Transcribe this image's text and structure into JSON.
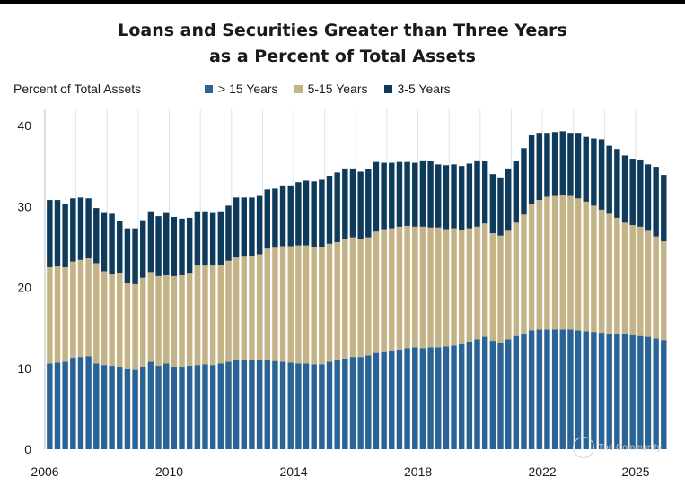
{
  "title_line1": "Loans and Securities Greater than Three Years",
  "title_line2": "as a Percent of Total Assets",
  "watermark": "The Community",
  "chart_data": {
    "type": "bar",
    "stacked": true,
    "title": "Loans and Securities Greater than Three Years as a Percent of Total Assets",
    "ylabel": "Percent of Total Assets",
    "xlabel": "",
    "ylim": [
      0,
      42
    ],
    "yticks": [
      0,
      10,
      20,
      30,
      40
    ],
    "xticks": [
      "2006",
      "2010",
      "2014",
      "2018",
      "2022",
      "2025"
    ],
    "x_start": 2006.0,
    "x_step": 0.25,
    "grid": "vertical",
    "legend_position": "top",
    "series": [
      {
        "name": "> 15 Years",
        "color": "#2a6496",
        "values": [
          10.6,
          10.7,
          10.8,
          11.3,
          11.4,
          11.5,
          10.6,
          10.4,
          10.3,
          10.2,
          9.9,
          9.8,
          10.2,
          10.8,
          10.3,
          10.6,
          10.2,
          10.2,
          10.3,
          10.4,
          10.5,
          10.4,
          10.6,
          10.8,
          11.0,
          11.0,
          11.0,
          11.0,
          11.0,
          10.9,
          10.8,
          10.7,
          10.6,
          10.6,
          10.5,
          10.5,
          10.8,
          11.0,
          11.2,
          11.4,
          11.4,
          11.6,
          11.9,
          12.0,
          12.1,
          12.3,
          12.5,
          12.6,
          12.5,
          12.6,
          12.6,
          12.7,
          12.8,
          13.0,
          13.3,
          13.6,
          13.9,
          13.4,
          13.1,
          13.6,
          14.0,
          14.3,
          14.7,
          14.8,
          14.8,
          14.8,
          14.8,
          14.8,
          14.7,
          14.6,
          14.5,
          14.4,
          14.3,
          14.2,
          14.2,
          14.1,
          14.0,
          13.9,
          13.7,
          13.5
        ]
      },
      {
        "name": "5-15 Years",
        "color": "#c4b386",
        "values": [
          11.9,
          11.9,
          11.7,
          11.9,
          12.0,
          12.1,
          12.4,
          11.6,
          11.3,
          11.6,
          10.6,
          10.6,
          11.0,
          11.1,
          11.1,
          10.9,
          11.2,
          11.3,
          11.4,
          12.3,
          12.2,
          12.3,
          12.2,
          12.5,
          12.7,
          12.8,
          12.9,
          13.1,
          13.8,
          14.0,
          14.3,
          14.4,
          14.6,
          14.6,
          14.5,
          14.5,
          14.6,
          14.6,
          14.8,
          14.8,
          14.6,
          14.6,
          15.0,
          15.2,
          15.2,
          15.2,
          15.1,
          14.9,
          15.0,
          14.8,
          14.8,
          14.5,
          14.5,
          14.1,
          14.0,
          13.9,
          14.0,
          13.3,
          13.3,
          13.4,
          14.0,
          14.7,
          15.6,
          16.0,
          16.4,
          16.5,
          16.6,
          16.5,
          16.3,
          16.0,
          15.6,
          15.2,
          14.8,
          14.4,
          13.8,
          13.6,
          13.5,
          13.1,
          12.6,
          12.2
        ]
      },
      {
        "name": "3-5 Years",
        "color": "#0e3a5c",
        "values": [
          8.3,
          8.2,
          7.8,
          7.8,
          7.7,
          7.4,
          6.8,
          7.3,
          7.5,
          6.4,
          6.8,
          6.9,
          7.1,
          7.5,
          7.4,
          7.8,
          7.3,
          7.0,
          6.9,
          6.7,
          6.7,
          6.6,
          6.6,
          6.8,
          7.4,
          7.3,
          7.2,
          7.2,
          7.3,
          7.3,
          7.5,
          7.5,
          7.8,
          8.0,
          8.1,
          8.3,
          8.4,
          8.6,
          8.7,
          8.5,
          8.3,
          8.4,
          8.6,
          8.2,
          8.1,
          8.0,
          7.9,
          7.9,
          8.2,
          8.2,
          7.8,
          7.9,
          7.9,
          7.9,
          8.0,
          8.2,
          7.7,
          7.3,
          7.2,
          7.7,
          7.6,
          8.2,
          8.5,
          8.3,
          7.9,
          7.9,
          7.9,
          7.8,
          8.1,
          8.0,
          8.3,
          8.7,
          8.4,
          8.5,
          8.3,
          8.2,
          8.3,
          8.2,
          8.6,
          8.2
        ]
      }
    ]
  }
}
